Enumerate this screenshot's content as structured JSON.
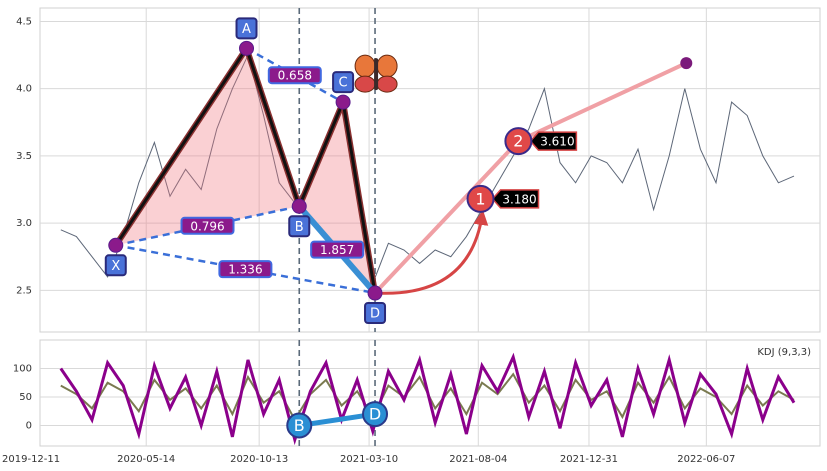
{
  "chart_data": [
    {
      "type": "line",
      "x": [
        "2020-01-20",
        "2020-02-10",
        "2020-03-02",
        "2020-03-23",
        "2020-04-13",
        "2020-05-04",
        "2020-05-25",
        "2020-06-15",
        "2020-07-06",
        "2020-07-27",
        "2020-08-17",
        "2020-09-07",
        "2020-09-28",
        "2020-10-19",
        "2020-11-09",
        "2020-11-30",
        "2020-12-21",
        "2021-01-11",
        "2021-02-01",
        "2021-02-22",
        "2021-03-15",
        "2021-04-05",
        "2021-04-26",
        "2021-05-17",
        "2021-06-07",
        "2021-06-28",
        "2021-07-19",
        "2021-08-09",
        "2021-08-30",
        "2021-09-20",
        "2021-10-11",
        "2021-11-01",
        "2021-11-22",
        "2021-12-13",
        "2022-01-03",
        "2022-01-24",
        "2022-02-14",
        "2022-03-07",
        "2022-03-28",
        "2022-04-18",
        "2022-05-09",
        "2022-05-30",
        "2022-06-20",
        "2022-07-11",
        "2022-08-01",
        "2022-08-22",
        "2022-09-12",
        "2022-10-03"
      ],
      "series": [
        {
          "color": "#5d6778",
          "values": [
            2.95,
            2.9,
            2.75,
            2.6,
            2.9,
            3.3,
            3.6,
            3.2,
            3.4,
            3.25,
            3.7,
            4.0,
            4.25,
            3.8,
            3.3,
            3.15,
            3.3,
            3.6,
            3.9,
            3.3,
            2.55,
            2.85,
            2.8,
            2.7,
            2.8,
            2.75,
            2.9,
            3.1,
            3.3,
            3.5,
            3.7,
            4.0,
            3.45,
            3.3,
            3.5,
            3.45,
            3.3,
            3.55,
            3.1,
            3.5,
            4.0,
            3.55,
            3.3,
            3.9,
            3.8,
            3.5,
            3.3,
            3.35
          ]
        }
      ],
      "xlim": [
        "2019-12-23",
        "2022-11-07"
      ],
      "xticks": [
        "2019-12-11",
        "2020-05-14",
        "2020-10-13",
        "2021-03-10",
        "2021-08-04",
        "2021-12-31",
        "2022-06-07"
      ],
      "ylim": [
        2.19,
        4.6
      ],
      "yticks": [
        2.5,
        {
          "value": 3,
          "label": "3.0"
        },
        3.5,
        {
          "value": 4,
          "label": "4.0"
        },
        4.5
      ],
      "grid": true,
      "pattern": {
        "labels": [
          "X",
          "A",
          "B",
          "C",
          "D"
        ],
        "x": [
          "2020-04-03",
          "2020-09-26",
          "2020-12-06",
          "2021-02-03",
          "2021-03-18"
        ],
        "values": [
          2.835,
          4.3,
          3.125,
          3.9,
          2.48
        ],
        "ratios": [
          {
            "value": 0.658,
            "points": [
              1,
              3
            ]
          },
          {
            "value": 0.796,
            "points": [
              0,
              2
            ]
          },
          {
            "value": 1.857,
            "points": [
              2,
              4
            ]
          },
          {
            "value": 1.336,
            "points": [
              0,
              4
            ]
          }
        ]
      },
      "projection": {
        "labels": [
          "1",
          "2"
        ],
        "x": [
          "2021-08-07",
          "2021-09-27"
        ],
        "values": [
          3.18,
          3.61
        ],
        "value_labels": [
          "3.180",
          "3.610"
        ],
        "target_x": "2022-05-11",
        "target_value": 4.19
      }
    },
    {
      "type": "line",
      "title": "KDJ (9,3,3)",
      "x": [
        "2020-01-20",
        "2020-02-10",
        "2020-03-02",
        "2020-03-23",
        "2020-04-13",
        "2020-05-04",
        "2020-05-25",
        "2020-06-15",
        "2020-07-06",
        "2020-07-27",
        "2020-08-17",
        "2020-09-07",
        "2020-09-28",
        "2020-10-19",
        "2020-11-09",
        "2020-11-30",
        "2020-12-21",
        "2021-01-11",
        "2021-02-01",
        "2021-02-22",
        "2021-03-15",
        "2021-04-05",
        "2021-04-26",
        "2021-05-17",
        "2021-06-07",
        "2021-06-28",
        "2021-07-19",
        "2021-08-09",
        "2021-08-30",
        "2021-09-20",
        "2021-10-11",
        "2021-11-01",
        "2021-11-22",
        "2021-12-13",
        "2022-01-03",
        "2022-01-24",
        "2022-02-14",
        "2022-03-07",
        "2022-03-28",
        "2022-04-18",
        "2022-05-09",
        "2022-05-30",
        "2022-06-20",
        "2022-07-11",
        "2022-08-01",
        "2022-08-22",
        "2022-09-12",
        "2022-10-03"
      ],
      "series": [
        {
          "color": "#7a7a50",
          "values": [
            70,
            55,
            30,
            75,
            60,
            25,
            80,
            45,
            65,
            30,
            70,
            20,
            85,
            40,
            60,
            10,
            55,
            80,
            35,
            60,
            15,
            70,
            50,
            85,
            30,
            65,
            20,
            75,
            55,
            90,
            40,
            70,
            25,
            80,
            45,
            60,
            15,
            75,
            40,
            85,
            30,
            65,
            50,
            20,
            70,
            35,
            60,
            45
          ]
        },
        {
          "color": "#8b008b",
          "values": [
            100,
            60,
            10,
            110,
            70,
            -15,
            105,
            30,
            85,
            0,
            95,
            -20,
            115,
            20,
            80,
            -25,
            60,
            110,
            10,
            80,
            -10,
            95,
            45,
            115,
            5,
            90,
            -15,
            105,
            60,
            120,
            15,
            95,
            -5,
            110,
            35,
            80,
            -20,
            100,
            20,
            115,
            5,
            90,
            55,
            -15,
            100,
            10,
            85,
            40
          ]
        }
      ],
      "xlim": [
        "2019-12-23",
        "2022-11-07"
      ],
      "xticks": [
        "2019-12-11",
        "2020-05-14",
        "2020-10-13",
        "2021-03-10",
        "2021-08-04",
        "2021-12-31",
        "2022-06-07"
      ],
      "ylim": [
        -36,
        150
      ],
      "yticks": [
        0,
        50,
        100
      ],
      "grid": true,
      "markers": {
        "labels": [
          "B",
          "D"
        ],
        "x": [
          "2020-12-06",
          "2021-03-18"
        ],
        "values": [
          0,
          20
        ]
      }
    }
  ]
}
